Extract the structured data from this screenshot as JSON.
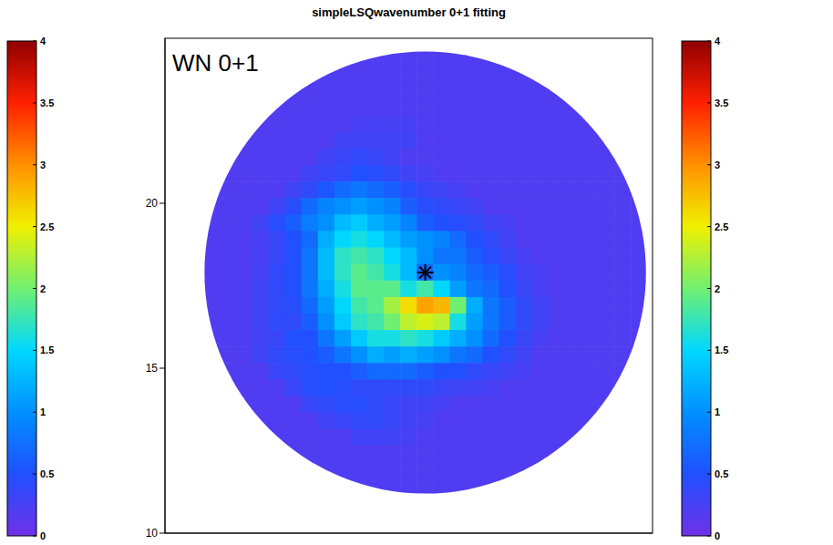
{
  "chart_data": {
    "type": "heatmap",
    "title": "simpleLSQwavenumber 0+1 fitting",
    "annotations": [
      "WN 0+1"
    ],
    "tick_labels": "y",
    "xlim": [
      -7.9,
      6.9
    ],
    "ylim": [
      10,
      25
    ],
    "yticks": [
      10,
      15,
      20
    ],
    "radius": 6.7,
    "center": {
      "x": 0,
      "y": 17.9,
      "marker": "asterisk"
    },
    "colorbars": [
      {
        "range": [
          0,
          4
        ],
        "ticks": [
          0,
          0.5,
          1,
          1.5,
          2,
          2.5,
          3,
          3.5,
          4
        ]
      },
      {
        "range": [
          0,
          4
        ],
        "ticks": [
          0,
          0.5,
          1,
          1.5,
          2,
          2.5,
          3,
          3.5,
          4
        ]
      }
    ],
    "x": [
      -6.5,
      -6,
      -5.5,
      -5,
      -4.5,
      -4,
      -3.5,
      -3,
      -2.5,
      -2,
      -1.5,
      -1,
      -0.5,
      0,
      0.5,
      1,
      1.5,
      2,
      2.5,
      3,
      3.5,
      4,
      4.5,
      5,
      5.5,
      6,
      6.5
    ],
    "y": [
      24.4,
      23.9,
      23.4,
      22.9,
      22.4,
      21.9,
      21.4,
      20.9,
      20.4,
      19.9,
      19.4,
      18.9,
      18.4,
      17.9,
      17.4,
      16.9,
      16.4,
      15.9,
      15.4,
      14.9,
      14.4,
      13.9,
      13.4,
      12.9,
      12.4,
      11.9,
      11.4
    ],
    "cells": [
      [
        null,
        null,
        null,
        null,
        null,
        null,
        null,
        null,
        0.2,
        0.2,
        0.2,
        0.2,
        0.2,
        0.2,
        0.2,
        0.2,
        0.2,
        0.2,
        0.2,
        null,
        null,
        null,
        null,
        null,
        null,
        null,
        null
      ],
      [
        null,
        null,
        null,
        null,
        null,
        null,
        0.2,
        0.2,
        0.2,
        0.2,
        0.2,
        0.2,
        0.2,
        0.2,
        0.2,
        0.2,
        0.2,
        0.2,
        0.2,
        0.2,
        0.2,
        null,
        null,
        null,
        null,
        null,
        null
      ],
      [
        null,
        null,
        null,
        null,
        null,
        0.2,
        0.2,
        0.2,
        0.2,
        0.2,
        0.2,
        0.2,
        0.2,
        0.2,
        0.2,
        0.2,
        0.2,
        0.2,
        0.2,
        0.2,
        0.2,
        0.2,
        null,
        null,
        null,
        null,
        null
      ],
      [
        null,
        null,
        null,
        null,
        0.2,
        0.2,
        0.2,
        0.2,
        0.2,
        0.2,
        0.2,
        0.2,
        0.2,
        0.2,
        0.2,
        0.2,
        0.2,
        0.2,
        0.2,
        0.2,
        0.2,
        0.2,
        0.2,
        null,
        null,
        null,
        null
      ],
      [
        null,
        null,
        null,
        0.2,
        0.2,
        0.2,
        0.2,
        0.2,
        0.2,
        0.25,
        0.25,
        0.25,
        0.25,
        0.2,
        0.2,
        0.2,
        0.2,
        0.2,
        0.2,
        0.2,
        0.2,
        0.2,
        0.2,
        0.2,
        null,
        null,
        null
      ],
      [
        null,
        null,
        0.2,
        0.2,
        0.2,
        0.2,
        0.2,
        0.2,
        0.3,
        0.3,
        0.3,
        0.3,
        0.3,
        0.2,
        0.2,
        0.2,
        0.2,
        0.2,
        0.2,
        0.2,
        0.2,
        0.2,
        0.2,
        0.2,
        0.2,
        null,
        null
      ],
      [
        null,
        0.2,
        0.2,
        0.2,
        0.2,
        0.2,
        0.2,
        0.3,
        0.35,
        0.4,
        0.35,
        0.3,
        0.2,
        0.2,
        0.2,
        0.2,
        0.2,
        0.2,
        0.2,
        0.2,
        0.2,
        0.2,
        0.2,
        0.2,
        0.2,
        0.2,
        null
      ],
      [
        null,
        0.2,
        0.2,
        0.2,
        0.2,
        0.2,
        0.3,
        0.35,
        0.4,
        0.5,
        0.45,
        0.4,
        0.3,
        0.25,
        0.2,
        0.2,
        0.2,
        0.2,
        0.2,
        0.2,
        0.2,
        0.2,
        0.2,
        0.2,
        0.2,
        0.2,
        null
      ],
      [
        0.2,
        0.2,
        0.2,
        0.2,
        0.2,
        0.3,
        0.4,
        0.55,
        0.7,
        0.8,
        0.7,
        0.6,
        0.45,
        0.35,
        0.3,
        0.25,
        0.2,
        0.2,
        0.2,
        0.2,
        0.2,
        0.2,
        0.2,
        0.2,
        0.2,
        0.2,
        0.2
      ],
      [
        0.2,
        0.2,
        0.2,
        0.2,
        0.3,
        0.45,
        0.7,
        0.9,
        1.0,
        1.1,
        1.0,
        0.9,
        0.6,
        0.45,
        0.4,
        0.35,
        0.3,
        0.2,
        0.2,
        0.2,
        0.2,
        0.2,
        0.2,
        0.2,
        0.2,
        0.2,
        0.2
      ],
      [
        0.2,
        0.2,
        0.2,
        0.3,
        0.45,
        0.6,
        0.85,
        1.0,
        1.3,
        1.4,
        1.2,
        1.1,
        0.9,
        0.6,
        0.5,
        0.45,
        0.4,
        0.3,
        0.25,
        0.2,
        0.2,
        0.2,
        0.2,
        0.2,
        0.2,
        0.2,
        0.2
      ],
      [
        0.2,
        0.2,
        0.2,
        0.25,
        0.35,
        0.5,
        0.7,
        1.2,
        1.5,
        1.6,
        1.5,
        1.3,
        1.1,
        1.0,
        0.9,
        0.7,
        0.5,
        0.4,
        0.3,
        0.2,
        0.2,
        0.2,
        0.2,
        0.2,
        0.2,
        0.2,
        0.2
      ],
      [
        0.2,
        0.2,
        0.2,
        0.25,
        0.35,
        0.5,
        0.8,
        1.3,
        1.7,
        1.8,
        1.7,
        1.5,
        1.3,
        1.0,
        0.8,
        0.8,
        0.6,
        0.45,
        0.35,
        0.25,
        0.2,
        0.2,
        0.2,
        0.2,
        0.2,
        0.2,
        0.2
      ],
      [
        0.2,
        0.2,
        0.2,
        0.25,
        0.4,
        0.5,
        0.8,
        1.3,
        1.7,
        1.9,
        1.8,
        1.6,
        1.3,
        0.7,
        1.0,
        0.9,
        0.7,
        0.6,
        0.45,
        0.3,
        0.25,
        0.2,
        0.2,
        0.2,
        0.2,
        0.2,
        0.2
      ],
      [
        0.2,
        0.2,
        0.2,
        0.3,
        0.4,
        0.5,
        0.8,
        1.2,
        1.6,
        1.9,
        1.9,
        1.9,
        1.6,
        1.8,
        1.5,
        1.1,
        0.8,
        0.7,
        0.5,
        0.35,
        0.25,
        0.2,
        0.2,
        0.2,
        0.2,
        0.2,
        0.2
      ],
      [
        0.2,
        0.2,
        0.2,
        0.3,
        0.4,
        0.45,
        0.7,
        1.1,
        1.5,
        1.8,
        1.9,
        2.2,
        2.6,
        2.9,
        2.8,
        2.0,
        1.2,
        0.8,
        0.6,
        0.4,
        0.3,
        0.2,
        0.2,
        0.2,
        0.2,
        0.2,
        0.2
      ],
      [
        0.2,
        0.2,
        0.2,
        0.3,
        0.4,
        0.4,
        0.6,
        1.0,
        1.4,
        1.7,
        1.8,
        2.0,
        2.3,
        2.4,
        2.3,
        1.6,
        1.1,
        0.8,
        0.6,
        0.4,
        0.3,
        0.2,
        0.2,
        0.2,
        0.2,
        0.2,
        0.2
      ],
      [
        0.2,
        0.2,
        0.2,
        0.3,
        0.35,
        0.5,
        0.5,
        0.8,
        1.1,
        1.4,
        1.6,
        1.6,
        1.7,
        1.6,
        1.4,
        1.2,
        1.0,
        0.7,
        0.5,
        0.35,
        0.25,
        0.2,
        0.2,
        0.2,
        0.2,
        0.2,
        0.2
      ],
      [
        0.2,
        0.2,
        0.2,
        0.3,
        0.4,
        0.45,
        0.5,
        0.6,
        0.8,
        1.0,
        1.2,
        1.1,
        1.2,
        1.1,
        1.0,
        0.8,
        0.7,
        0.5,
        0.4,
        0.3,
        0.2,
        0.2,
        0.2,
        0.2,
        0.2,
        0.2,
        0.2
      ],
      [
        null,
        0.2,
        0.2,
        0.2,
        0.35,
        0.4,
        0.45,
        0.5,
        0.5,
        0.6,
        0.7,
        0.7,
        0.7,
        0.6,
        0.5,
        0.5,
        0.4,
        0.35,
        0.3,
        0.25,
        0.2,
        0.2,
        0.2,
        0.2,
        0.2,
        0.2,
        null
      ],
      [
        null,
        0.2,
        0.2,
        0.2,
        0.2,
        0.35,
        0.45,
        0.5,
        0.45,
        0.4,
        0.4,
        0.4,
        0.4,
        0.4,
        0.35,
        0.3,
        0.3,
        0.25,
        0.2,
        0.2,
        0.2,
        0.2,
        0.2,
        0.2,
        0.2,
        0.2,
        null
      ],
      [
        null,
        null,
        0.2,
        0.2,
        0.2,
        0.2,
        0.35,
        0.4,
        0.45,
        0.45,
        0.4,
        0.35,
        0.3,
        0.3,
        0.25,
        0.2,
        0.2,
        0.2,
        0.2,
        0.2,
        0.2,
        0.2,
        0.2,
        0.2,
        0.2,
        null,
        null
      ],
      [
        null,
        null,
        null,
        0.2,
        0.2,
        0.2,
        0.2,
        0.3,
        0.35,
        0.4,
        0.4,
        0.35,
        0.3,
        0.25,
        0.2,
        0.2,
        0.2,
        0.2,
        0.2,
        0.2,
        0.2,
        0.2,
        0.2,
        0.2,
        null,
        null,
        null
      ],
      [
        null,
        null,
        null,
        null,
        0.2,
        0.2,
        0.2,
        0.2,
        0.2,
        0.3,
        0.3,
        0.3,
        0.25,
        0.2,
        0.2,
        0.2,
        0.2,
        0.2,
        0.2,
        0.2,
        0.2,
        0.2,
        0.2,
        null,
        null,
        null,
        null
      ],
      [
        null,
        null,
        null,
        null,
        null,
        0.2,
        0.2,
        0.2,
        0.2,
        0.2,
        0.2,
        0.2,
        0.2,
        0.2,
        0.2,
        0.2,
        0.2,
        0.2,
        0.2,
        0.2,
        0.2,
        0.2,
        null,
        null,
        null,
        null,
        null
      ],
      [
        null,
        null,
        null,
        null,
        null,
        null,
        0.2,
        0.2,
        0.2,
        0.2,
        0.2,
        0.2,
        0.2,
        0.2,
        0.2,
        0.2,
        0.2,
        0.2,
        0.2,
        0.2,
        0.2,
        null,
        null,
        null,
        null,
        null,
        null
      ],
      [
        null,
        null,
        null,
        null,
        null,
        null,
        null,
        null,
        0.2,
        0.2,
        0.2,
        0.2,
        0.2,
        0.2,
        0.2,
        0.2,
        0.2,
        0.2,
        0.2,
        null,
        null,
        null,
        null,
        null,
        null,
        null,
        null
      ]
    ]
  }
}
